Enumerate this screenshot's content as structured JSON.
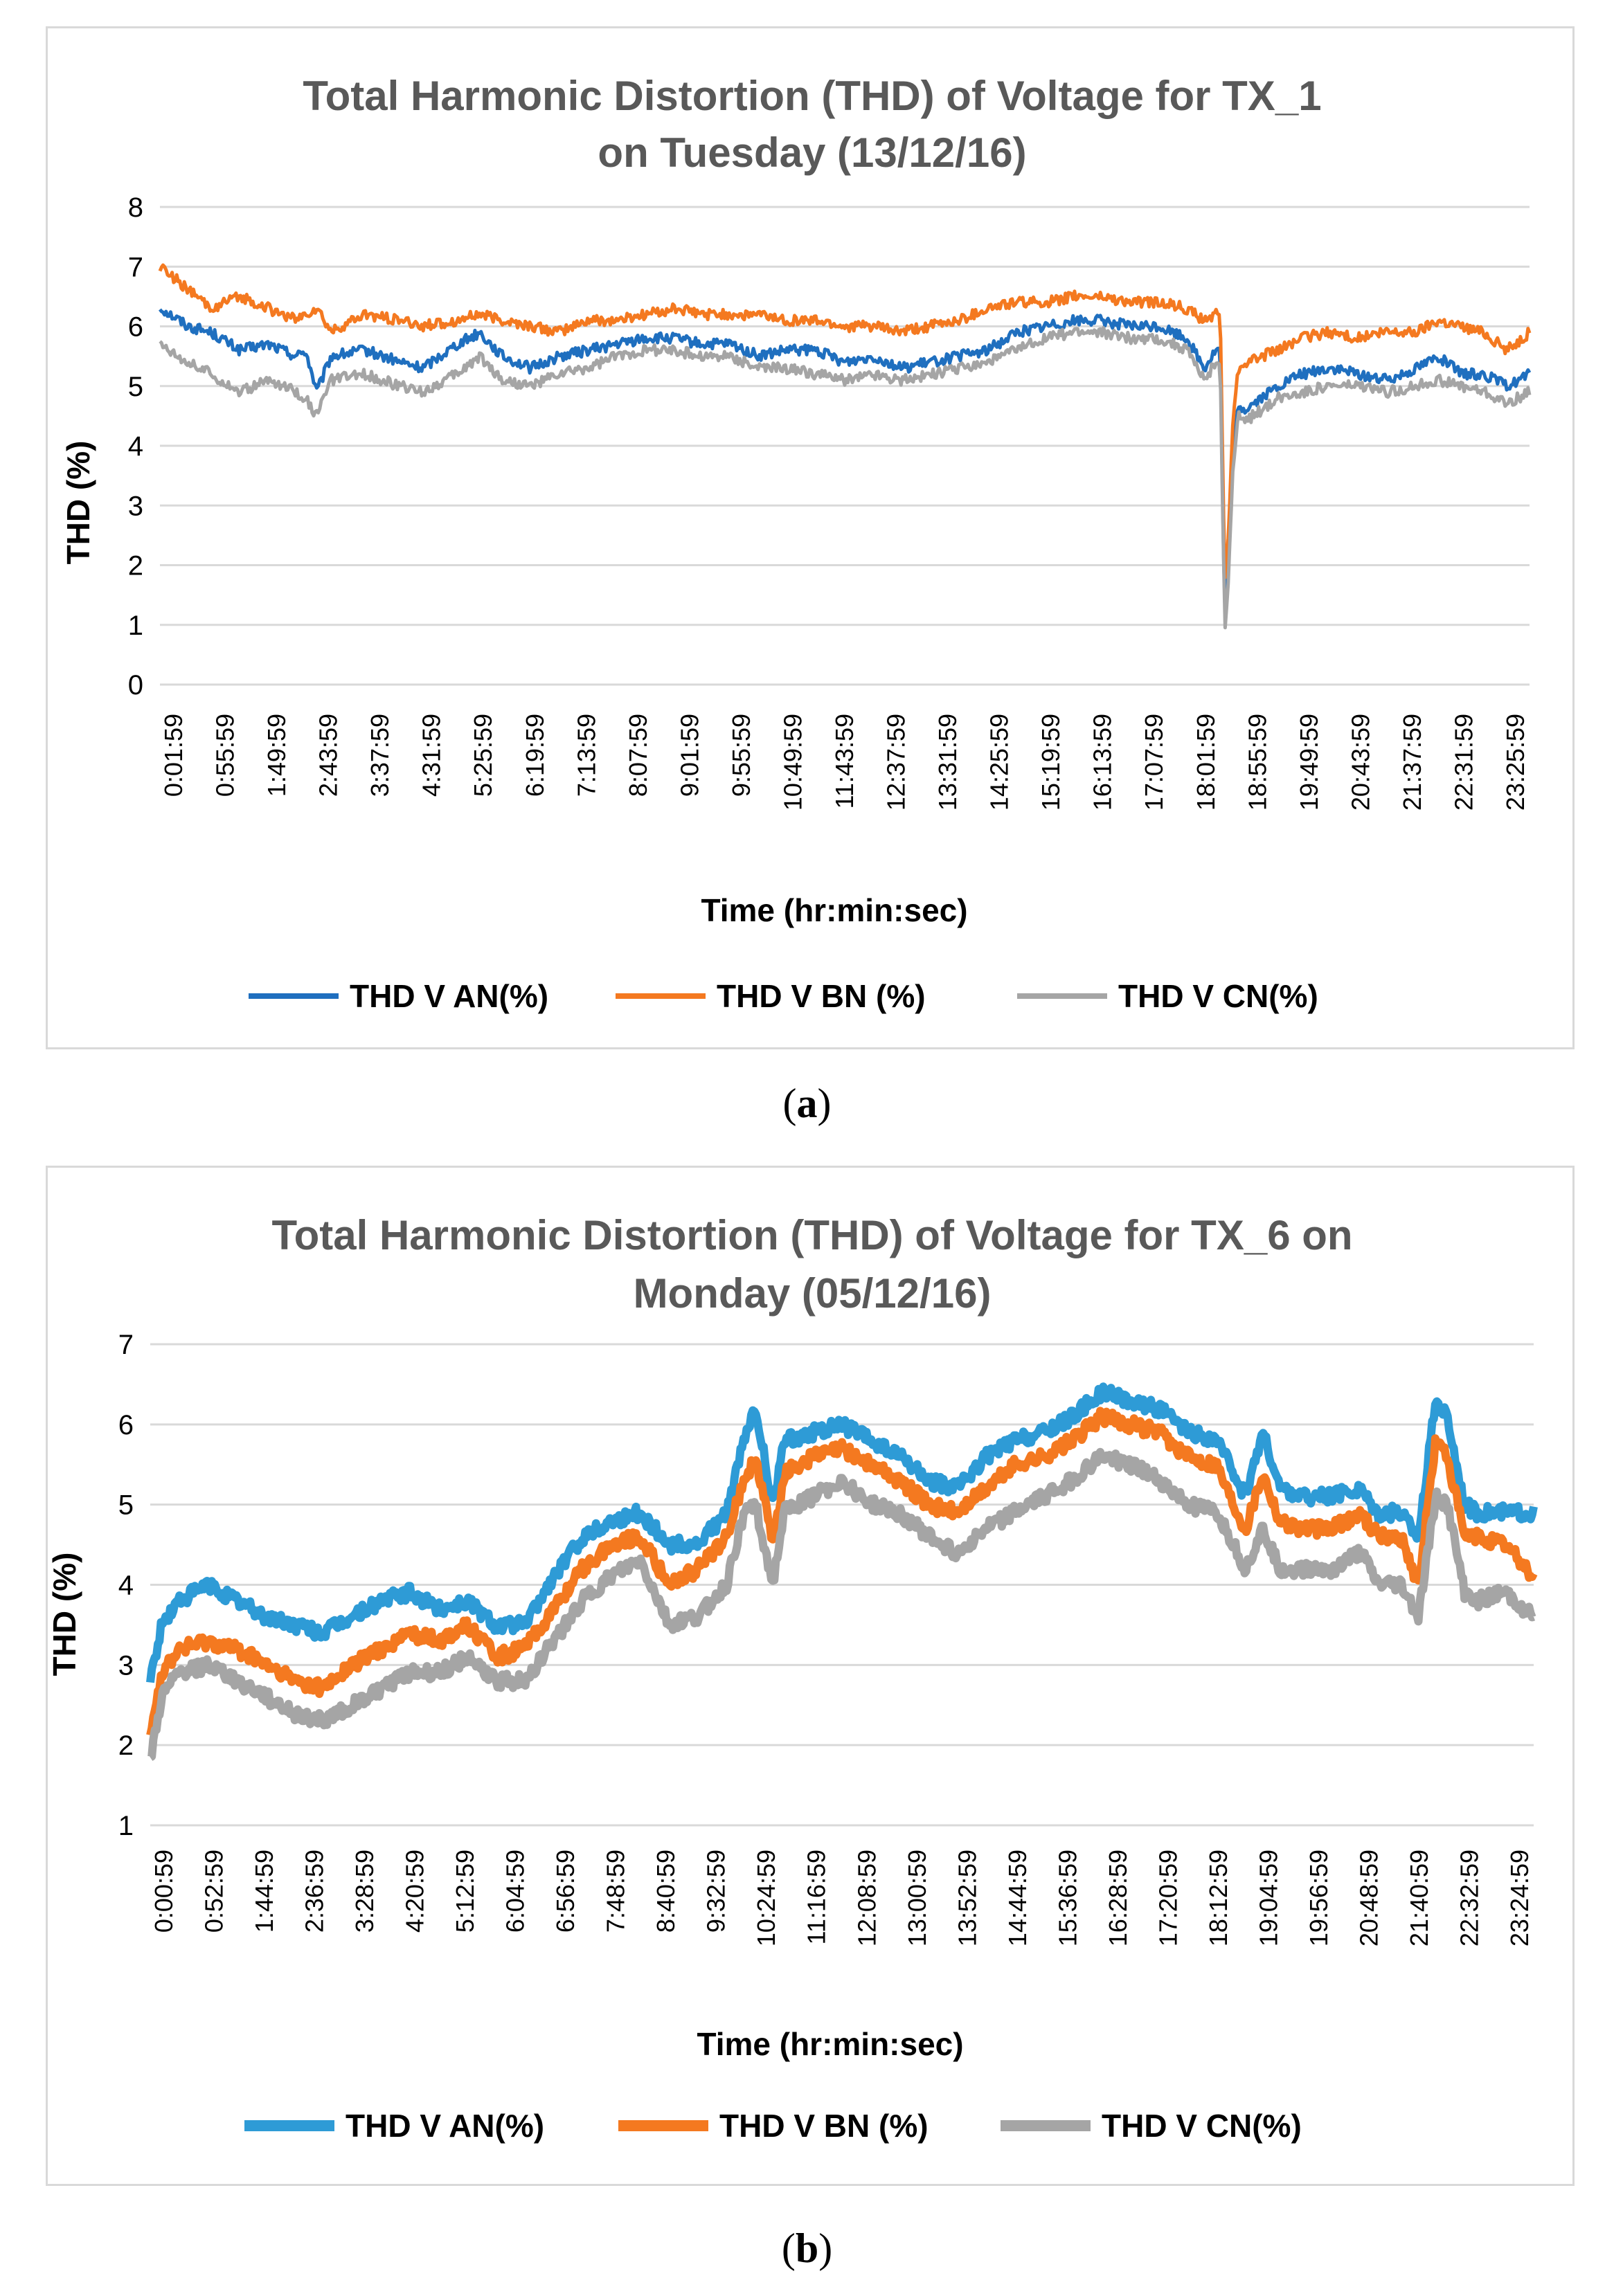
{
  "chart_data": [
    {
      "id": "a",
      "type": "line",
      "title_lines": [
        "Total Harmonic Distortion (THD) of Voltage for TX_1",
        "on Tuesday (13/12/16)"
      ],
      "caption": "a",
      "xlabel": "Time (hr:min:sec)",
      "ylabel": "THD (%)",
      "ylim": [
        0,
        8
      ],
      "yticks": [
        "0",
        "1",
        "2",
        "3",
        "4",
        "5",
        "6",
        "7",
        "8"
      ],
      "grid": true,
      "legend_position": "bottom",
      "x_tick_labels": [
        "0:01:59",
        "0:55:59",
        "1:49:59",
        "2:43:59",
        "3:37:59",
        "4:31:59",
        "5:25:59",
        "6:19:59",
        "7:13:59",
        "8:07:59",
        "9:01:59",
        "9:55:59",
        "10:49:59",
        "11:43:59",
        "12:37:59",
        "13:31:59",
        "14:25:59",
        "15:19:59",
        "16:13:59",
        "17:07:59",
        "18:01:59",
        "18:55:59",
        "19:49:59",
        "20:43:59",
        "21:37:59",
        "22:31:59",
        "23:25:59"
      ],
      "x_hours": [
        0.03,
        0.5,
        0.9,
        1.4,
        1.9,
        2.4,
        2.55,
        2.75,
        3.0,
        3.6,
        4.2,
        4.6,
        5.2,
        5.6,
        6.0,
        6.5,
        7.0,
        7.5,
        8.0,
        8.5,
        9.0,
        9.5,
        10.0,
        10.5,
        11.0,
        11.5,
        12.0,
        12.5,
        13.0,
        13.5,
        14.0,
        14.5,
        15.0,
        15.5,
        16.0,
        16.5,
        17.0,
        17.5,
        18.0,
        18.3,
        18.5,
        18.58,
        18.66,
        18.72,
        18.8,
        18.9,
        19.0,
        19.3,
        19.6,
        20.0,
        20.5,
        21.0,
        21.5,
        22.0,
        22.4,
        22.8,
        23.2,
        23.6,
        24.0
      ],
      "series": [
        {
          "name": "THD V AN(%)",
          "color": "#1f6fbf",
          "values": [
            6.3,
            6.0,
            5.9,
            5.6,
            5.7,
            5.5,
            5.6,
            4.9,
            5.5,
            5.6,
            5.4,
            5.3,
            5.7,
            5.9,
            5.5,
            5.3,
            5.5,
            5.6,
            5.7,
            5.8,
            5.8,
            5.7,
            5.7,
            5.5,
            5.6,
            5.6,
            5.4,
            5.5,
            5.3,
            5.4,
            5.5,
            5.6,
            5.9,
            6.0,
            6.1,
            6.1,
            6.0,
            6.0,
            5.8,
            5.3,
            5.6,
            5.6,
            1.0,
            2.0,
            3.8,
            4.7,
            4.6,
            4.8,
            5.0,
            5.2,
            5.3,
            5.2,
            5.1,
            5.3,
            5.5,
            5.2,
            5.2,
            5.0,
            5.2
          ]
        },
        {
          "name": "THD V BN (%)",
          "color": "#f47920",
          "values": [
            7.0,
            6.6,
            6.3,
            6.5,
            6.3,
            6.1,
            6.2,
            6.3,
            5.9,
            6.2,
            6.1,
            6.0,
            6.1,
            6.2,
            6.1,
            6.0,
            5.9,
            6.1,
            6.1,
            6.2,
            6.3,
            6.2,
            6.2,
            6.2,
            6.1,
            6.1,
            6.0,
            6.0,
            5.9,
            6.0,
            6.1,
            6.3,
            6.4,
            6.4,
            6.5,
            6.5,
            6.4,
            6.4,
            6.3,
            6.1,
            6.2,
            6.2,
            1.7,
            2.4,
            4.4,
            5.3,
            5.4,
            5.5,
            5.6,
            5.8,
            5.9,
            5.8,
            5.9,
            5.9,
            6.1,
            6.0,
            5.9,
            5.6,
            5.9
          ]
        },
        {
          "name": "THD V CN(%)",
          "color": "#a5a5a5",
          "values": [
            5.7,
            5.4,
            5.2,
            4.9,
            5.1,
            4.9,
            4.8,
            4.5,
            5.1,
            5.2,
            5.0,
            4.9,
            5.2,
            5.5,
            5.1,
            5.0,
            5.2,
            5.3,
            5.5,
            5.6,
            5.6,
            5.5,
            5.5,
            5.3,
            5.3,
            5.2,
            5.1,
            5.2,
            5.1,
            5.2,
            5.3,
            5.4,
            5.6,
            5.8,
            5.9,
            5.9,
            5.8,
            5.8,
            5.6,
            5.1,
            5.4,
            5.4,
            0.9,
            1.7,
            3.6,
            4.5,
            4.4,
            4.6,
            4.8,
            4.9,
            5.0,
            5.0,
            4.9,
            5.0,
            5.1,
            5.0,
            4.9,
            4.7,
            4.9
          ]
        }
      ]
    },
    {
      "id": "b",
      "type": "line",
      "title_lines": [
        "Total Harmonic Distortion (THD) of Voltage for TX_6 on",
        "Monday (05/12/16)"
      ],
      "caption": "b",
      "xlabel": "Time (hr:min:sec)",
      "ylabel": "THD (%)",
      "ylim": [
        1,
        7
      ],
      "yticks": [
        "1",
        "2",
        "3",
        "4",
        "5",
        "6",
        "7"
      ],
      "grid": true,
      "legend_position": "bottom",
      "x_tick_labels": [
        "0:00:59",
        "0:52:59",
        "1:44:59",
        "2:36:59",
        "3:28:59",
        "4:20:59",
        "5:12:59",
        "6:04:59",
        "6:56:59",
        "7:48:59",
        "8:40:59",
        "9:32:59",
        "10:24:59",
        "11:16:59",
        "12:08:59",
        "13:00:59",
        "13:52:59",
        "14:44:59",
        "15:36:59",
        "16:28:59",
        "17:20:59",
        "18:12:59",
        "19:04:59",
        "19:56:59",
        "20:48:59",
        "21:40:59",
        "22:32:59",
        "23:24:59"
      ],
      "x_hours": [
        0.0,
        0.2,
        0.5,
        1.0,
        1.5,
        2.0,
        2.5,
        3.0,
        3.5,
        4.0,
        4.5,
        5.0,
        5.5,
        6.0,
        6.5,
        7.0,
        7.5,
        8.0,
        8.5,
        9.0,
        9.5,
        10.0,
        10.3,
        10.5,
        10.8,
        11.0,
        11.5,
        12.0,
        12.5,
        13.0,
        13.5,
        14.0,
        14.5,
        15.0,
        15.5,
        16.0,
        16.5,
        17.0,
        17.5,
        18.0,
        18.5,
        18.8,
        19.0,
        19.3,
        19.6,
        20.0,
        20.5,
        21.0,
        21.3,
        21.7,
        22.0,
        22.3,
        22.5,
        22.8,
        23.0,
        23.5,
        24.0
      ],
      "series": [
        {
          "name": "THD V AN(%)",
          "color": "#2e9bd6",
          "values": [
            2.8,
            3.5,
            3.8,
            4.0,
            3.8,
            3.6,
            3.5,
            3.4,
            3.6,
            3.8,
            3.9,
            3.7,
            3.8,
            3.5,
            3.5,
            4.1,
            4.6,
            4.8,
            4.9,
            4.5,
            4.5,
            4.9,
            5.8,
            6.2,
            5.0,
            5.8,
            5.9,
            6.0,
            5.8,
            5.6,
            5.3,
            5.2,
            5.6,
            5.8,
            5.9,
            6.1,
            6.4,
            6.3,
            6.2,
            5.9,
            5.8,
            5.4,
            5.1,
            5.9,
            5.2,
            5.1,
            5.1,
            5.2,
            4.9,
            4.9,
            4.6,
            6.3,
            6.1,
            5.0,
            4.9,
            4.9,
            4.9
          ]
        },
        {
          "name": "THD V BN (%)",
          "color": "#f47920",
          "values": [
            2.2,
            2.9,
            3.2,
            3.3,
            3.2,
            3.0,
            2.8,
            2.7,
            3.0,
            3.2,
            3.4,
            3.3,
            3.5,
            3.1,
            3.2,
            3.7,
            4.2,
            4.5,
            4.6,
            4.0,
            4.2,
            4.6,
            5.3,
            5.6,
            4.5,
            5.4,
            5.6,
            5.7,
            5.5,
            5.3,
            5.0,
            4.9,
            5.2,
            5.5,
            5.6,
            5.8,
            6.1,
            6.0,
            5.9,
            5.6,
            5.5,
            5.0,
            4.7,
            5.4,
            4.8,
            4.7,
            4.7,
            4.9,
            4.6,
            4.6,
            4.0,
            5.8,
            5.6,
            4.6,
            4.6,
            4.5,
            4.1
          ]
        },
        {
          "name": "THD V CN(%)",
          "color": "#a5a5a5",
          "values": [
            1.8,
            2.6,
            2.9,
            3.0,
            2.8,
            2.6,
            2.4,
            2.3,
            2.5,
            2.7,
            2.9,
            2.9,
            3.1,
            2.8,
            2.8,
            3.3,
            3.8,
            4.1,
            4.3,
            3.5,
            3.6,
            4.0,
            4.9,
            5.0,
            4.0,
            4.9,
            5.1,
            5.3,
            5.0,
            4.9,
            4.6,
            4.4,
            4.7,
            4.9,
            5.1,
            5.3,
            5.6,
            5.5,
            5.3,
            5.0,
            4.9,
            4.5,
            4.2,
            4.7,
            4.2,
            4.2,
            4.2,
            4.4,
            4.0,
            4.0,
            3.6,
            5.1,
            5.0,
            3.9,
            3.8,
            3.9,
            3.6
          ]
        }
      ]
    }
  ]
}
